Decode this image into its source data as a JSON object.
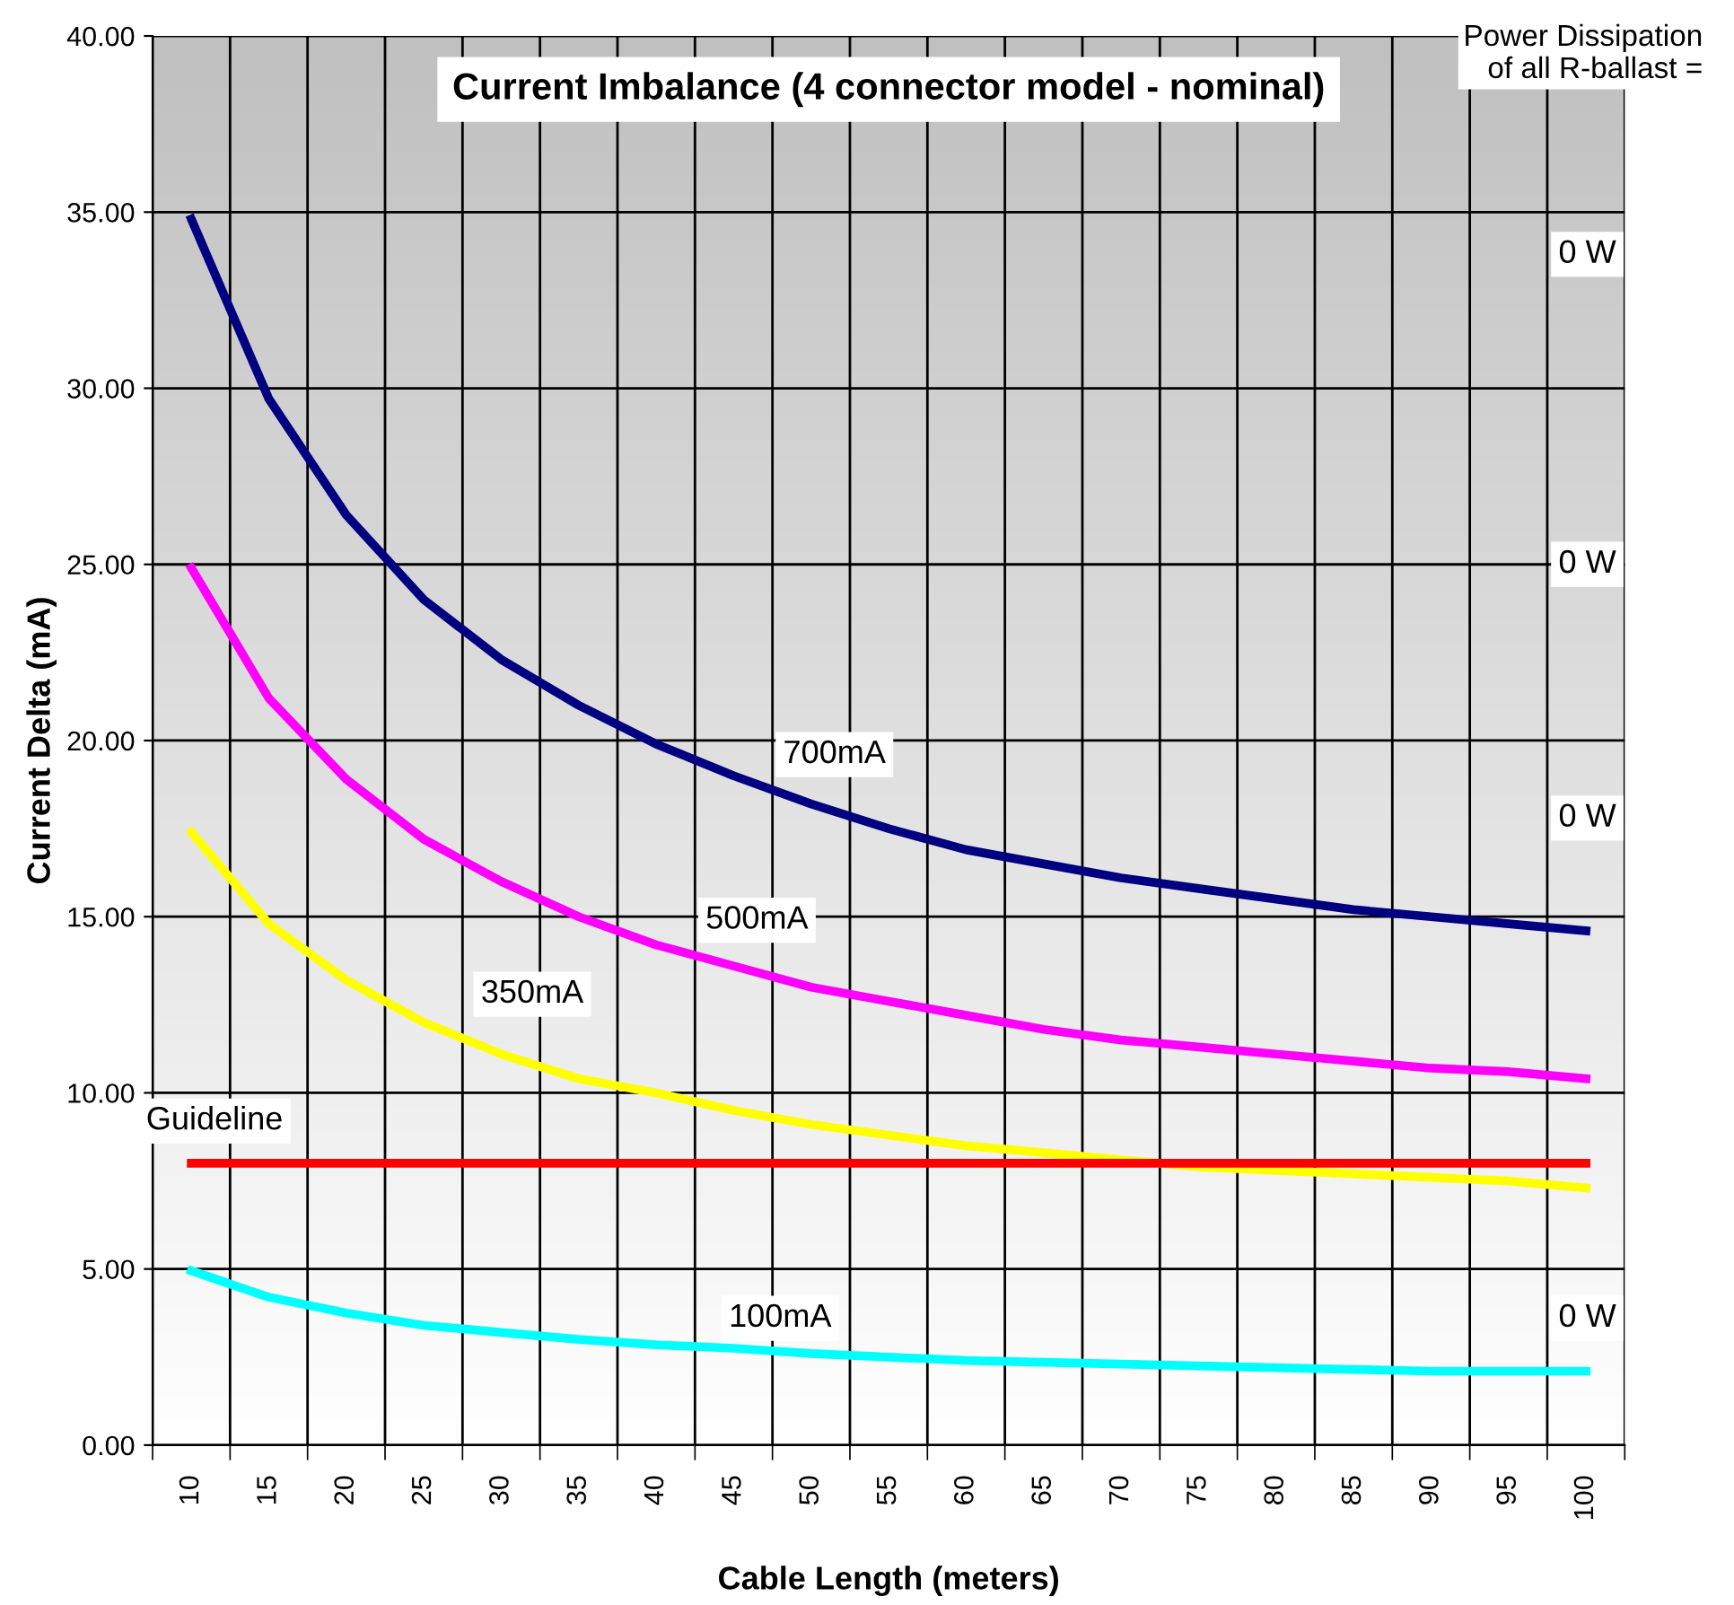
{
  "chart_data": {
    "type": "line",
    "title": "Current Imbalance (4 connector model - nominal)",
    "xlabel": "Cable Length (meters)",
    "ylabel": "Current Delta (mA)",
    "categories": [
      "10",
      "15",
      "20",
      "25",
      "30",
      "35",
      "40",
      "45",
      "50",
      "55",
      "60",
      "65",
      "70",
      "75",
      "80",
      "85",
      "90",
      "95",
      "100"
    ],
    "series": [
      {
        "name": "700mA",
        "color": "#000080",
        "values": [
          34.8,
          29.7,
          26.4,
          24.0,
          22.3,
          21.0,
          19.9,
          19.0,
          18.2,
          17.5,
          16.9,
          16.5,
          16.1,
          15.8,
          15.5,
          15.2,
          15.0,
          14.8,
          14.6
        ]
      },
      {
        "name": "500mA",
        "color": "#ff00ff",
        "values": [
          24.9,
          21.2,
          18.9,
          17.2,
          16.0,
          15.0,
          14.2,
          13.6,
          13.0,
          12.6,
          12.2,
          11.8,
          11.5,
          11.3,
          11.1,
          10.9,
          10.7,
          10.6,
          10.4
        ]
      },
      {
        "name": "350mA",
        "color": "#ffff00",
        "values": [
          17.4,
          14.8,
          13.2,
          12.0,
          11.1,
          10.4,
          10.0,
          9.5,
          9.1,
          8.8,
          8.5,
          8.3,
          8.1,
          7.9,
          7.8,
          7.7,
          7.6,
          7.5,
          7.3
        ]
      },
      {
        "name": "Guideline",
        "color": "#ff0000",
        "values": [
          8,
          8,
          8,
          8,
          8,
          8,
          8,
          8,
          8,
          8,
          8,
          8,
          8,
          8,
          8,
          8,
          8,
          8,
          8
        ]
      },
      {
        "name": "100mA",
        "color": "#00ffff",
        "values": [
          4.95,
          4.2,
          3.75,
          3.4,
          3.2,
          3.0,
          2.85,
          2.75,
          2.6,
          2.5,
          2.4,
          2.35,
          2.3,
          2.25,
          2.2,
          2.15,
          2.1,
          2.1,
          2.1
        ]
      }
    ],
    "ylim": [
      0,
      40
    ],
    "yticks": [
      {
        "value": 0,
        "label": "0.00"
      },
      {
        "value": 5,
        "label": "5.00"
      },
      {
        "value": 10,
        "label": "10.00"
      },
      {
        "value": 15,
        "label": "15.00"
      },
      {
        "value": 20,
        "label": "20.00"
      },
      {
        "value": 25,
        "label": "25.00"
      },
      {
        "value": 30,
        "label": "30.00"
      },
      {
        "value": 35,
        "label": "35.00"
      },
      {
        "value": 40,
        "label": "40.00"
      }
    ],
    "grid": true,
    "legend": false,
    "marker": "none",
    "line_style": "solid",
    "annotations": [
      "Power Dissipation\nof all R-ballast =",
      "0 W",
      "0 W",
      "0 W",
      "0 W"
    ]
  }
}
